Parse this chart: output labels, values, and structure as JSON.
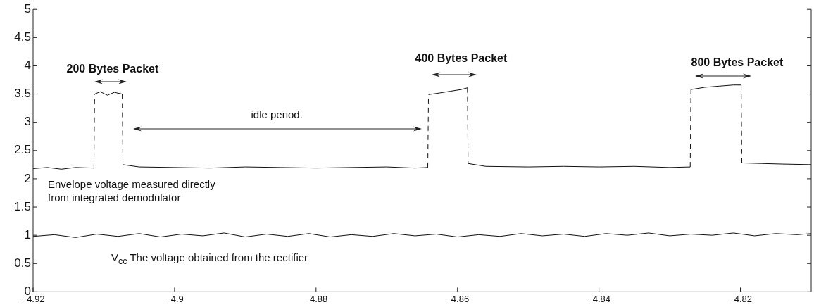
{
  "chart_data": {
    "type": "line",
    "xlim": [
      -4.92,
      -4.81
    ],
    "xticks": [
      -4.92,
      -4.9,
      -4.88,
      -4.86,
      -4.84,
      -4.82
    ],
    "ylim": [
      0,
      5
    ],
    "yticks": [
      0,
      0.5,
      1,
      1.5,
      2,
      2.5,
      3,
      3.5,
      4,
      4.5,
      5
    ],
    "grid": false,
    "legend": false,
    "marker": "none",
    "line_style": "solid",
    "annotations": [
      "200 Bytes Packet",
      "400 Bytes Packet",
      "800 Bytes Packet",
      "idle period.",
      "Envelope voltage measured directly from integrated demodulator",
      "V$_{cc}$   The voltage obtained from the rectifier"
    ],
    "series": [
      {
        "color": "#111111",
        "x": [
          -4.92,
          -4.918,
          -4.916,
          -4.914,
          -4.9114,
          -4.9113,
          -4.9105,
          -4.9095,
          -4.9085,
          -4.9074,
          -4.9073,
          -4.905,
          -4.9,
          -4.895,
          -4.89,
          -4.885,
          -4.88,
          -4.875,
          -4.87,
          -4.866,
          -4.8642,
          -4.8641,
          -4.8625,
          -4.861,
          -4.8595,
          -4.8586,
          -4.8585,
          -4.856,
          -4.85,
          -4.845,
          -4.84,
          -4.835,
          -4.83,
          -4.8271,
          -4.827,
          -4.825,
          -4.823,
          -4.821,
          -4.8199,
          -4.8198,
          -4.817,
          -4.814,
          -4.81
        ],
        "values": [
          2.18,
          2.2,
          2.17,
          2.2,
          2.19,
          3.5,
          3.54,
          3.48,
          3.53,
          3.5,
          2.25,
          2.21,
          2.2,
          2.19,
          2.21,
          2.2,
          2.19,
          2.2,
          2.21,
          2.19,
          2.2,
          3.49,
          3.52,
          3.55,
          3.58,
          3.61,
          2.27,
          2.22,
          2.21,
          2.22,
          2.21,
          2.22,
          2.2,
          2.21,
          3.58,
          3.62,
          3.64,
          3.66,
          3.66,
          2.28,
          2.27,
          2.26,
          2.25
        ]
      },
      {
        "color": "#111111",
        "x": [
          -4.92,
          -4.917,
          -4.914,
          -4.911,
          -4.908,
          -4.905,
          -4.902,
          -4.899,
          -4.896,
          -4.893,
          -4.89,
          -4.887,
          -4.884,
          -4.881,
          -4.878,
          -4.875,
          -4.872,
          -4.869,
          -4.866,
          -4.863,
          -4.86,
          -4.857,
          -4.854,
          -4.851,
          -4.848,
          -4.845,
          -4.842,
          -4.839,
          -4.836,
          -4.833,
          -4.83,
          -4.827,
          -4.824,
          -4.821,
          -4.818,
          -4.815,
          -4.812,
          -4.81
        ],
        "values": [
          0.98,
          1.01,
          0.96,
          1.02,
          0.98,
          1.03,
          0.97,
          1.02,
          0.99,
          1.04,
          0.97,
          1.02,
          0.98,
          1.03,
          0.97,
          1.01,
          0.98,
          1.03,
          0.99,
          1.02,
          0.97,
          1.01,
          0.98,
          1.03,
          0.99,
          1.02,
          0.98,
          1.03,
          1.0,
          1.04,
          0.99,
          1.02,
          1.0,
          1.04,
          0.99,
          1.03,
          1.01,
          1.03
        ]
      }
    ]
  }
}
